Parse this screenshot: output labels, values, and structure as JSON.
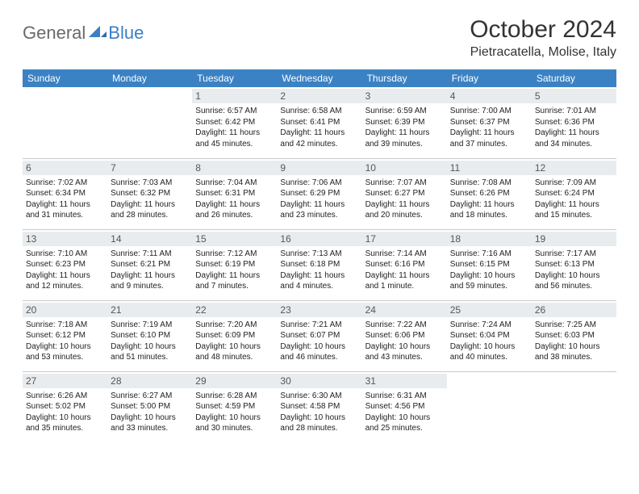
{
  "brand": {
    "word1": "General",
    "word2": "Blue"
  },
  "title": "October 2024",
  "location": "Pietracatella, Molise, Italy",
  "header_bg": "#3b82c4",
  "daynum_bg": "#e8ecef",
  "text_color": "#222222",
  "day_headers": [
    "Sunday",
    "Monday",
    "Tuesday",
    "Wednesday",
    "Thursday",
    "Friday",
    "Saturday"
  ],
  "weeks": [
    [
      {
        "n": "",
        "sr": "",
        "ss": "",
        "dl": ""
      },
      {
        "n": "",
        "sr": "",
        "ss": "",
        "dl": ""
      },
      {
        "n": "1",
        "sr": "Sunrise: 6:57 AM",
        "ss": "Sunset: 6:42 PM",
        "dl": "Daylight: 11 hours and 45 minutes."
      },
      {
        "n": "2",
        "sr": "Sunrise: 6:58 AM",
        "ss": "Sunset: 6:41 PM",
        "dl": "Daylight: 11 hours and 42 minutes."
      },
      {
        "n": "3",
        "sr": "Sunrise: 6:59 AM",
        "ss": "Sunset: 6:39 PM",
        "dl": "Daylight: 11 hours and 39 minutes."
      },
      {
        "n": "4",
        "sr": "Sunrise: 7:00 AM",
        "ss": "Sunset: 6:37 PM",
        "dl": "Daylight: 11 hours and 37 minutes."
      },
      {
        "n": "5",
        "sr": "Sunrise: 7:01 AM",
        "ss": "Sunset: 6:36 PM",
        "dl": "Daylight: 11 hours and 34 minutes."
      }
    ],
    [
      {
        "n": "6",
        "sr": "Sunrise: 7:02 AM",
        "ss": "Sunset: 6:34 PM",
        "dl": "Daylight: 11 hours and 31 minutes."
      },
      {
        "n": "7",
        "sr": "Sunrise: 7:03 AM",
        "ss": "Sunset: 6:32 PM",
        "dl": "Daylight: 11 hours and 28 minutes."
      },
      {
        "n": "8",
        "sr": "Sunrise: 7:04 AM",
        "ss": "Sunset: 6:31 PM",
        "dl": "Daylight: 11 hours and 26 minutes."
      },
      {
        "n": "9",
        "sr": "Sunrise: 7:06 AM",
        "ss": "Sunset: 6:29 PM",
        "dl": "Daylight: 11 hours and 23 minutes."
      },
      {
        "n": "10",
        "sr": "Sunrise: 7:07 AM",
        "ss": "Sunset: 6:27 PM",
        "dl": "Daylight: 11 hours and 20 minutes."
      },
      {
        "n": "11",
        "sr": "Sunrise: 7:08 AM",
        "ss": "Sunset: 6:26 PM",
        "dl": "Daylight: 11 hours and 18 minutes."
      },
      {
        "n": "12",
        "sr": "Sunrise: 7:09 AM",
        "ss": "Sunset: 6:24 PM",
        "dl": "Daylight: 11 hours and 15 minutes."
      }
    ],
    [
      {
        "n": "13",
        "sr": "Sunrise: 7:10 AM",
        "ss": "Sunset: 6:23 PM",
        "dl": "Daylight: 11 hours and 12 minutes."
      },
      {
        "n": "14",
        "sr": "Sunrise: 7:11 AM",
        "ss": "Sunset: 6:21 PM",
        "dl": "Daylight: 11 hours and 9 minutes."
      },
      {
        "n": "15",
        "sr": "Sunrise: 7:12 AM",
        "ss": "Sunset: 6:19 PM",
        "dl": "Daylight: 11 hours and 7 minutes."
      },
      {
        "n": "16",
        "sr": "Sunrise: 7:13 AM",
        "ss": "Sunset: 6:18 PM",
        "dl": "Daylight: 11 hours and 4 minutes."
      },
      {
        "n": "17",
        "sr": "Sunrise: 7:14 AM",
        "ss": "Sunset: 6:16 PM",
        "dl": "Daylight: 11 hours and 1 minute."
      },
      {
        "n": "18",
        "sr": "Sunrise: 7:16 AM",
        "ss": "Sunset: 6:15 PM",
        "dl": "Daylight: 10 hours and 59 minutes."
      },
      {
        "n": "19",
        "sr": "Sunrise: 7:17 AM",
        "ss": "Sunset: 6:13 PM",
        "dl": "Daylight: 10 hours and 56 minutes."
      }
    ],
    [
      {
        "n": "20",
        "sr": "Sunrise: 7:18 AM",
        "ss": "Sunset: 6:12 PM",
        "dl": "Daylight: 10 hours and 53 minutes."
      },
      {
        "n": "21",
        "sr": "Sunrise: 7:19 AM",
        "ss": "Sunset: 6:10 PM",
        "dl": "Daylight: 10 hours and 51 minutes."
      },
      {
        "n": "22",
        "sr": "Sunrise: 7:20 AM",
        "ss": "Sunset: 6:09 PM",
        "dl": "Daylight: 10 hours and 48 minutes."
      },
      {
        "n": "23",
        "sr": "Sunrise: 7:21 AM",
        "ss": "Sunset: 6:07 PM",
        "dl": "Daylight: 10 hours and 46 minutes."
      },
      {
        "n": "24",
        "sr": "Sunrise: 7:22 AM",
        "ss": "Sunset: 6:06 PM",
        "dl": "Daylight: 10 hours and 43 minutes."
      },
      {
        "n": "25",
        "sr": "Sunrise: 7:24 AM",
        "ss": "Sunset: 6:04 PM",
        "dl": "Daylight: 10 hours and 40 minutes."
      },
      {
        "n": "26",
        "sr": "Sunrise: 7:25 AM",
        "ss": "Sunset: 6:03 PM",
        "dl": "Daylight: 10 hours and 38 minutes."
      }
    ],
    [
      {
        "n": "27",
        "sr": "Sunrise: 6:26 AM",
        "ss": "Sunset: 5:02 PM",
        "dl": "Daylight: 10 hours and 35 minutes."
      },
      {
        "n": "28",
        "sr": "Sunrise: 6:27 AM",
        "ss": "Sunset: 5:00 PM",
        "dl": "Daylight: 10 hours and 33 minutes."
      },
      {
        "n": "29",
        "sr": "Sunrise: 6:28 AM",
        "ss": "Sunset: 4:59 PM",
        "dl": "Daylight: 10 hours and 30 minutes."
      },
      {
        "n": "30",
        "sr": "Sunrise: 6:30 AM",
        "ss": "Sunset: 4:58 PM",
        "dl": "Daylight: 10 hours and 28 minutes."
      },
      {
        "n": "31",
        "sr": "Sunrise: 6:31 AM",
        "ss": "Sunset: 4:56 PM",
        "dl": "Daylight: 10 hours and 25 minutes."
      },
      {
        "n": "",
        "sr": "",
        "ss": "",
        "dl": ""
      },
      {
        "n": "",
        "sr": "",
        "ss": "",
        "dl": ""
      }
    ]
  ]
}
